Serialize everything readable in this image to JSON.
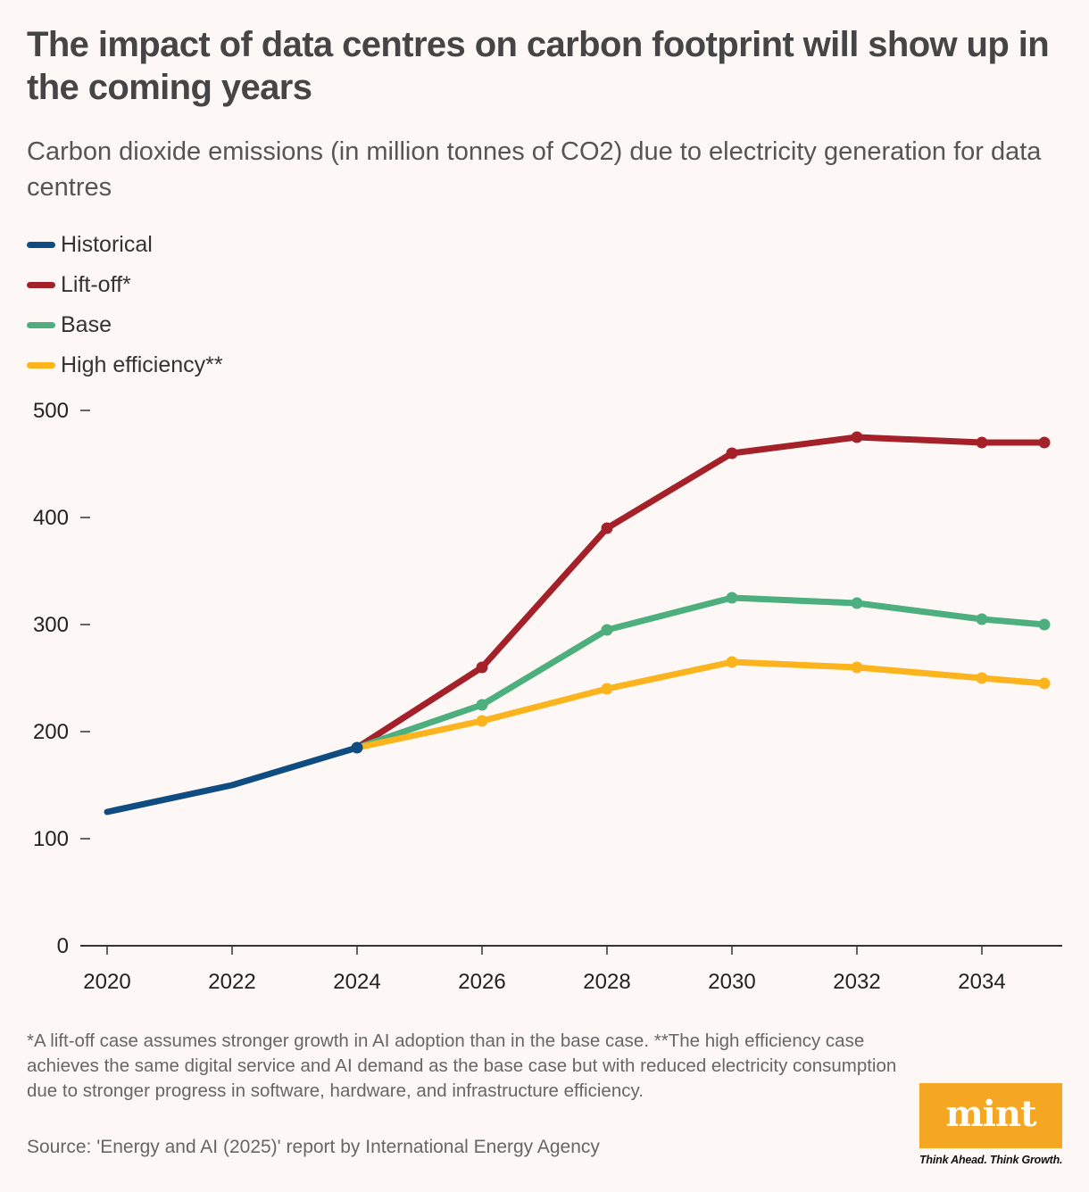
{
  "header": {
    "title": "The impact of data centres on carbon footprint will show up in the coming years",
    "subtitle": "Carbon dioxide emissions (in million tonnes of CO2) due to electricity generation for data centres"
  },
  "chart_data": {
    "type": "line",
    "title": "The impact of data centres on carbon footprint will show up in the coming years",
    "subtitle": "Carbon dioxide emissions (in million tonnes of CO2) due to electricity generation for data centres",
    "xlabel": "",
    "ylabel": "",
    "xlim": [
      2020,
      2035
    ],
    "ylim": [
      0,
      500
    ],
    "x_ticks": [
      2020,
      2022,
      2024,
      2026,
      2028,
      2030,
      2032,
      2034
    ],
    "y_ticks": [
      0,
      100,
      200,
      300,
      400,
      500
    ],
    "grid": false,
    "legend_position": "top-left",
    "series": [
      {
        "name": "Historical",
        "color": "#0f4c81",
        "x": [
          2020,
          2022,
          2024
        ],
        "values": [
          125,
          150,
          185
        ],
        "markers_at": [
          2024
        ]
      },
      {
        "name": "Lift-off*",
        "color": "#a4212a",
        "x": [
          2024,
          2026,
          2028,
          2030,
          2032,
          2034,
          2035
        ],
        "values": [
          185,
          260,
          390,
          460,
          475,
          470,
          470
        ],
        "markers_at": [
          2026,
          2028,
          2030,
          2032,
          2034,
          2035
        ]
      },
      {
        "name": "Base",
        "color": "#4caf7d",
        "x": [
          2024,
          2026,
          2028,
          2030,
          2032,
          2034,
          2035
        ],
        "values": [
          185,
          225,
          295,
          325,
          320,
          305,
          300
        ],
        "markers_at": [
          2026,
          2028,
          2030,
          2032,
          2034,
          2035
        ]
      },
      {
        "name": "High efficiency**",
        "color": "#fbb41d",
        "x": [
          2024,
          2026,
          2028,
          2030,
          2032,
          2034,
          2035
        ],
        "values": [
          185,
          210,
          240,
          265,
          260,
          250,
          245
        ],
        "markers_at": [
          2026,
          2028,
          2030,
          2032,
          2034,
          2035
        ]
      }
    ]
  },
  "footer": {
    "footnote": "*A lift-off case assumes stronger growth in AI adoption than in the base case. **The high efficiency case achieves the same digital service and AI demand as the base case but with reduced electricity consumption due to stronger progress in software, hardware, and infrastructure efficiency.",
    "source": "Source: 'Energy and AI (2025)' report by International Energy Agency"
  },
  "brand": {
    "logo": "mint",
    "tagline": "Think Ahead. Think Growth.",
    "color": "#f5a623"
  }
}
